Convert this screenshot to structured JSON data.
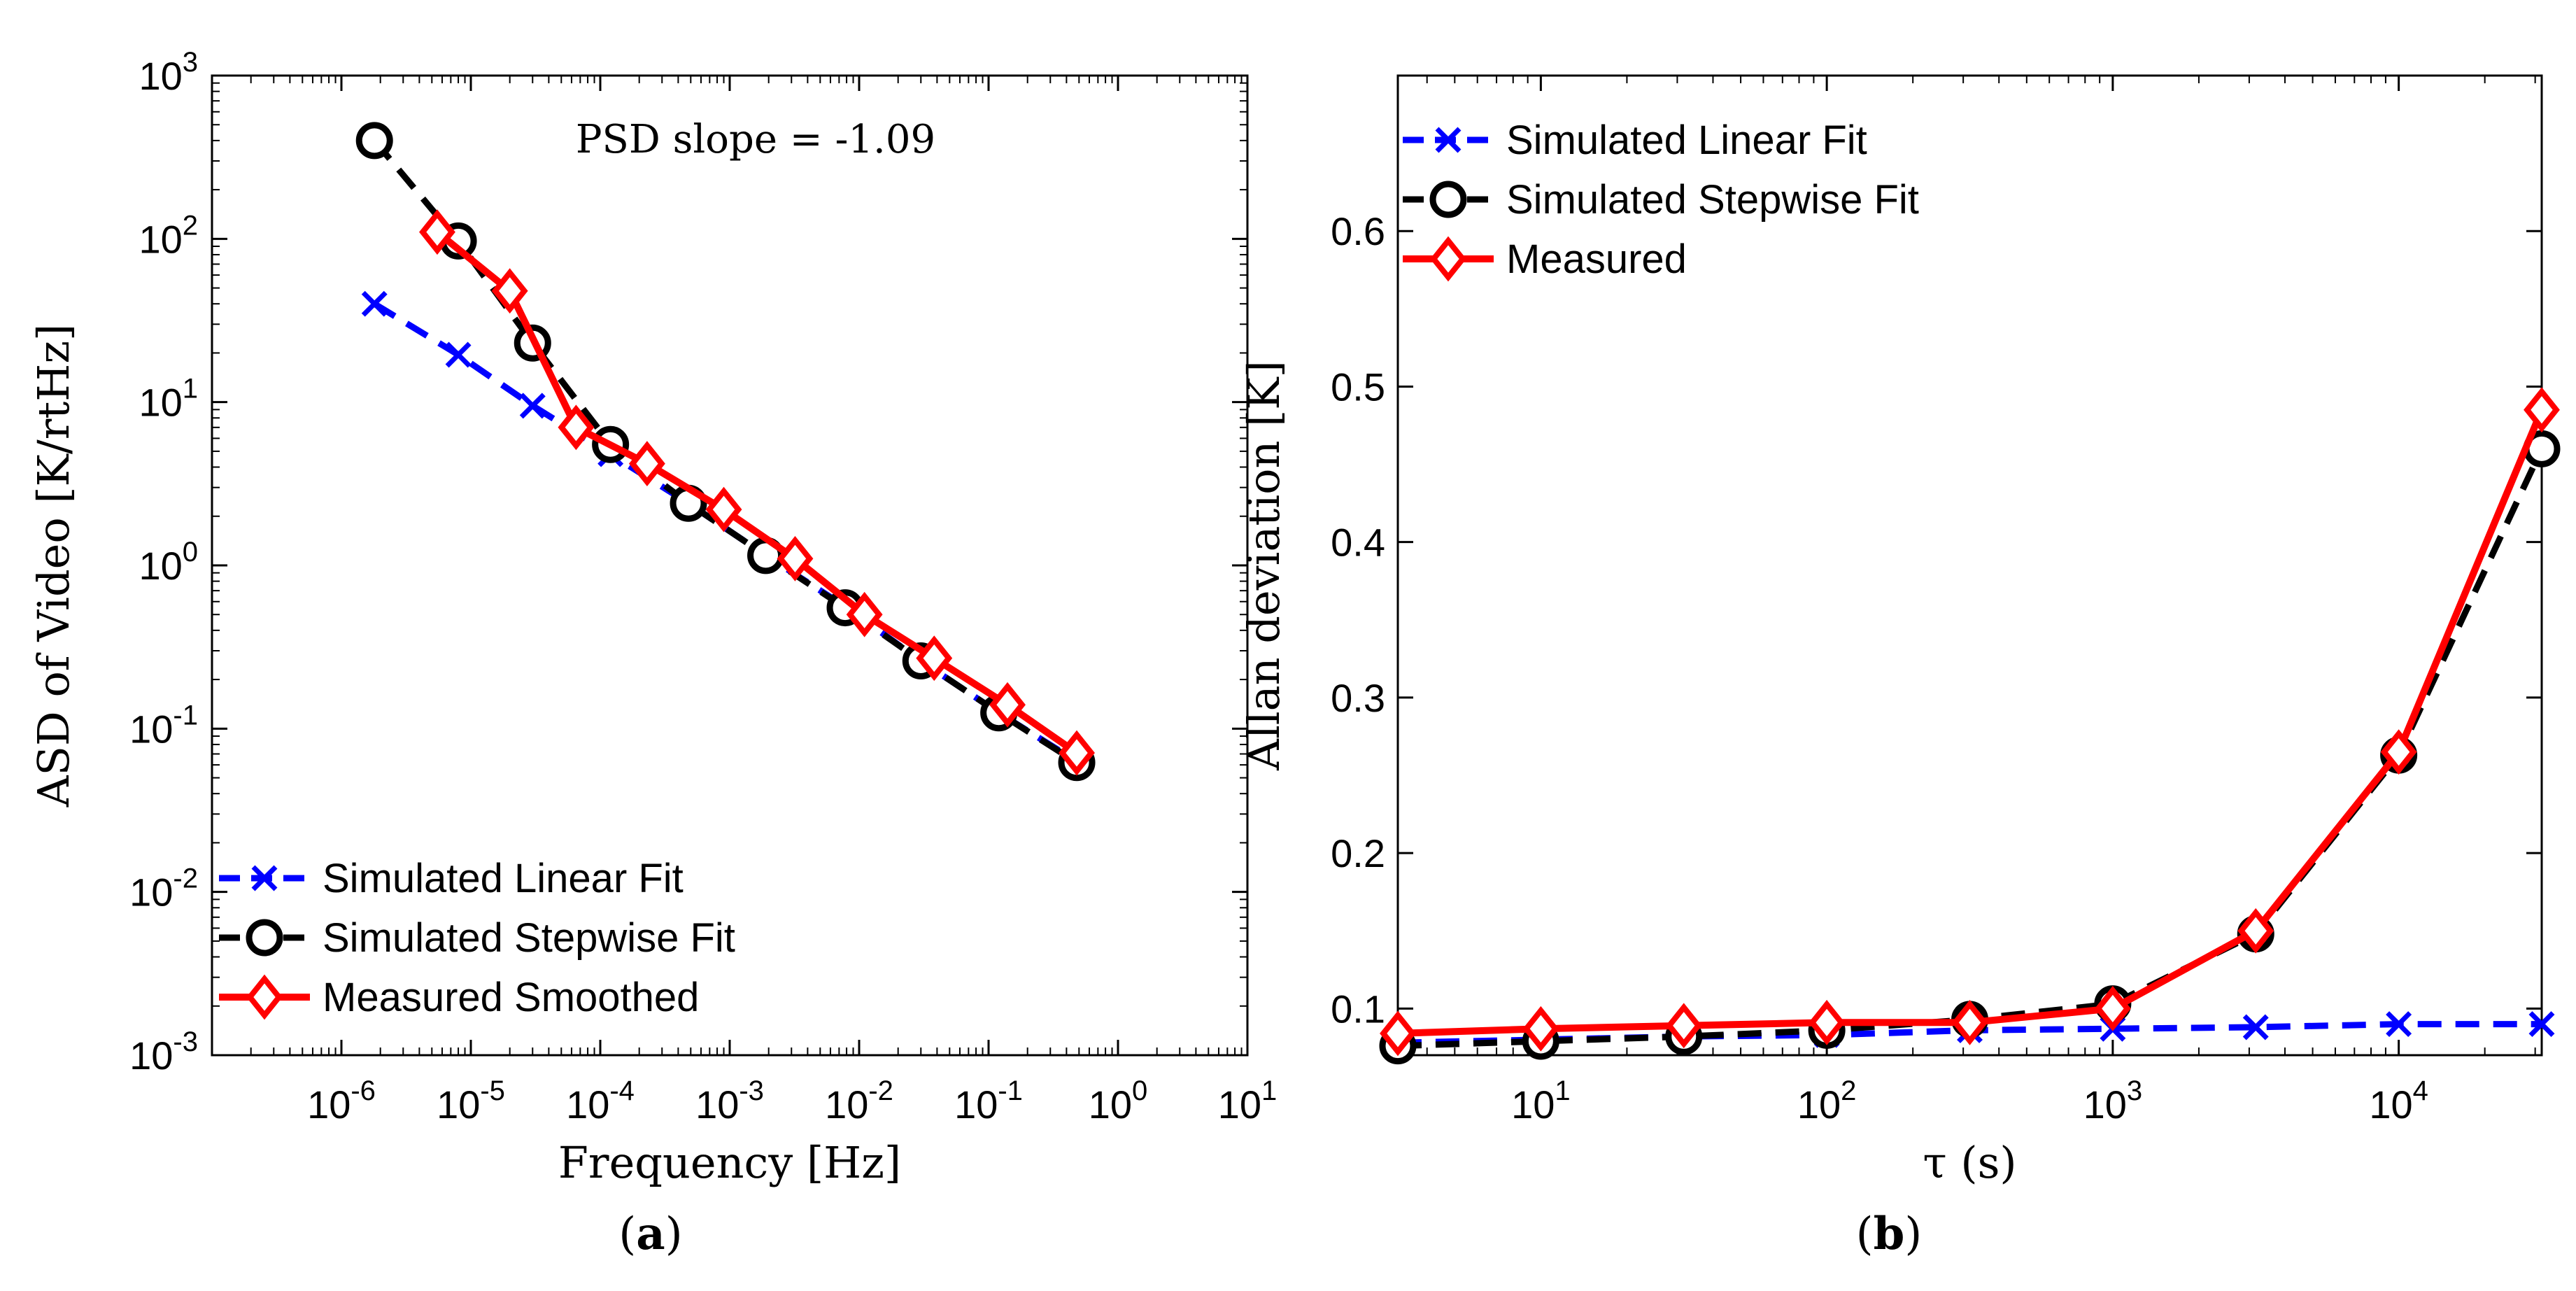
{
  "chart_data": [
    {
      "type": "line",
      "panel_id": "a",
      "caption_letter": "a",
      "xscale": "log",
      "yscale": "log",
      "xlim": [
        1e-07,
        10
      ],
      "ylim": [
        0.001,
        1000
      ],
      "xlabel": "Frequency [Hz]",
      "ylabel": "ASD of Video [K/rtHz]",
      "annotation": "PSD slope = -1.09",
      "legend_position": "bottom-left",
      "x_ticks": [
        {
          "base": "10",
          "exp": "-6",
          "value": 1e-06
        },
        {
          "base": "10",
          "exp": "-5",
          "value": 1e-05
        },
        {
          "base": "10",
          "exp": "-4",
          "value": 0.0001
        },
        {
          "base": "10",
          "exp": "-3",
          "value": 0.001
        },
        {
          "base": "10",
          "exp": "-2",
          "value": 0.01
        },
        {
          "base": "10",
          "exp": "-1",
          "value": 0.1
        },
        {
          "base": "10",
          "exp": "0",
          "value": 1
        },
        {
          "base": "10",
          "exp": "1",
          "value": 10
        }
      ],
      "y_ticks": [
        {
          "base": "10",
          "exp": "-3",
          "value": 0.001
        },
        {
          "base": "10",
          "exp": "-2",
          "value": 0.01
        },
        {
          "base": "10",
          "exp": "-1",
          "value": 0.1
        },
        {
          "base": "10",
          "exp": "0",
          "value": 1
        },
        {
          "base": "10",
          "exp": "1",
          "value": 10
        },
        {
          "base": "10",
          "exp": "2",
          "value": 100
        },
        {
          "base": "10",
          "exp": "3",
          "value": 1000
        }
      ],
      "series": [
        {
          "name": "Simulated Linear Fit",
          "color": "#0000ff",
          "line_style": "dashed",
          "marker": "x",
          "x": [
            1.8e-06,
            8e-06,
            3e-05,
            0.00012,
            0.00048,
            0.0019,
            0.0078,
            0.03,
            0.12,
            0.48
          ],
          "y": [
            40,
            19.5,
            9.5,
            4.8,
            2.4,
            1.15,
            0.56,
            0.26,
            0.125,
            0.063
          ]
        },
        {
          "name": "Simulated Stepwise Fit",
          "color": "#000000",
          "line_style": "dashed",
          "marker": "o",
          "x": [
            1.8e-06,
            8e-06,
            3e-05,
            0.00012,
            0.00048,
            0.0019,
            0.0078,
            0.03,
            0.12,
            0.48
          ],
          "y": [
            400,
            97,
            23,
            5.5,
            2.4,
            1.15,
            0.55,
            0.26,
            0.125,
            0.062
          ]
        },
        {
          "name": "Measured Smoothed",
          "color": "#ff0000",
          "line_style": "solid",
          "marker": "diamond",
          "x": [
            5.5e-06,
            2e-05,
            6.5e-05,
            0.00023,
            0.0009,
            0.0032,
            0.011,
            0.038,
            0.14,
            0.48
          ],
          "y": [
            110,
            48,
            7,
            4.2,
            2.2,
            1.1,
            0.5,
            0.27,
            0.14,
            0.071
          ]
        }
      ]
    },
    {
      "type": "line",
      "panel_id": "b",
      "caption_letter": "b",
      "xscale": "log",
      "yscale": "linear",
      "xlim": [
        3.1623,
        31623
      ],
      "ylim": [
        0.07,
        0.7
      ],
      "xlabel": "τ (s)",
      "ylabel": "Allan deviation [K]",
      "legend_position": "top-left",
      "x_ticks": [
        {
          "base": "10",
          "exp": "1",
          "value": 10
        },
        {
          "base": "10",
          "exp": "2",
          "value": 100
        },
        {
          "base": "10",
          "exp": "3",
          "value": 1000
        },
        {
          "base": "10",
          "exp": "4",
          "value": 10000
        }
      ],
      "y_ticks": [
        {
          "label": "0.1",
          "value": 0.1
        },
        {
          "label": "0.2",
          "value": 0.2
        },
        {
          "label": "0.3",
          "value": 0.3
        },
        {
          "label": "0.4",
          "value": 0.4
        },
        {
          "label": "0.5",
          "value": 0.5
        },
        {
          "label": "0.6",
          "value": 0.6
        }
      ],
      "series": [
        {
          "name": "Simulated Linear Fit",
          "color": "#0000ff",
          "line_style": "dashed",
          "marker": "x",
          "x": [
            3.1623,
            10,
            31.623,
            100,
            316.23,
            1000,
            3162.3,
            10000,
            31623
          ],
          "y": [
            0.078,
            0.08,
            0.082,
            0.083,
            0.086,
            0.087,
            0.088,
            0.09,
            0.09
          ]
        },
        {
          "name": "Simulated Stepwise Fit",
          "color": "#000000",
          "line_style": "dashed",
          "marker": "o",
          "x": [
            3.1623,
            10,
            31.623,
            100,
            316.23,
            1000,
            3162.3,
            10000,
            31623
          ],
          "y": [
            0.076,
            0.079,
            0.082,
            0.086,
            0.093,
            0.103,
            0.148,
            0.263,
            0.46
          ]
        },
        {
          "name": "Measured",
          "color": "#ff0000",
          "line_style": "solid",
          "marker": "diamond",
          "x": [
            3.1623,
            10,
            31.623,
            100,
            316.23,
            1000,
            3162.3,
            10000,
            31623
          ],
          "y": [
            0.084,
            0.087,
            0.089,
            0.091,
            0.091,
            0.1,
            0.15,
            0.265,
            0.485
          ]
        }
      ]
    }
  ]
}
